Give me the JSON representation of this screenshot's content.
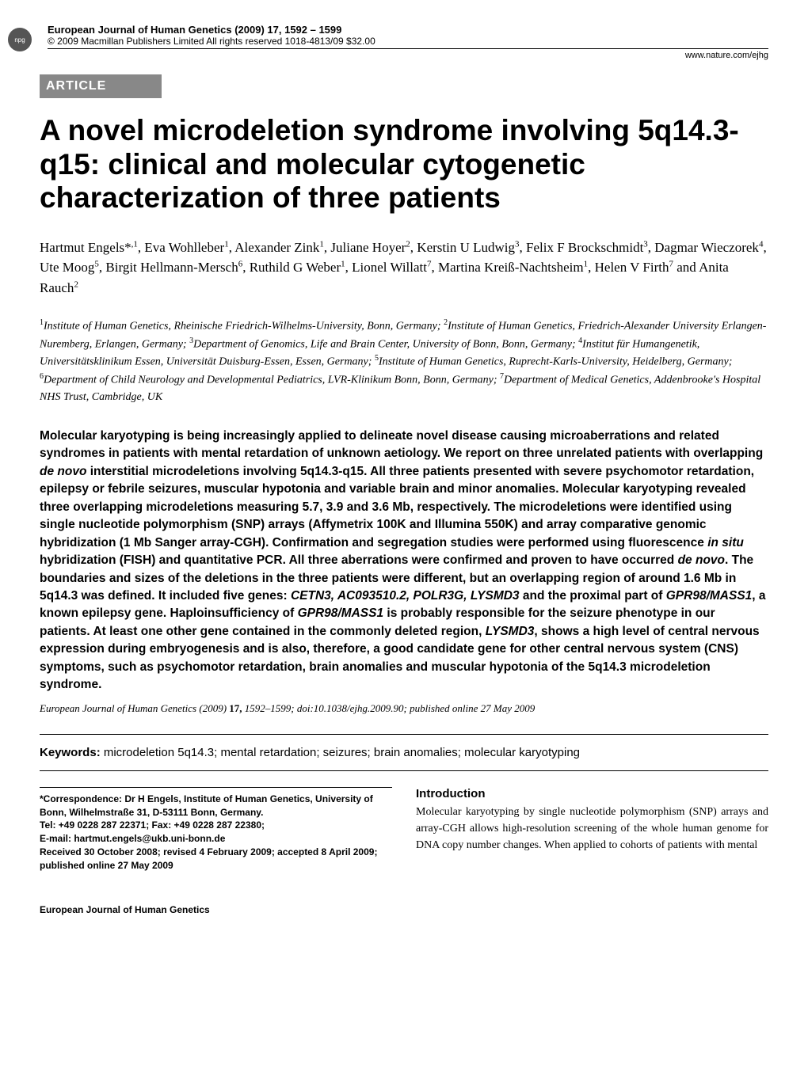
{
  "badge": {
    "npg_text": "npg"
  },
  "header": {
    "journal_line": "European Journal of Human Genetics (2009) 17, 1592 – 1599",
    "copyright_line": "© 2009 Macmillan Publishers Limited   All rights reserved 1018-4813/09 $32.00",
    "url": "www.nature.com/ejhg"
  },
  "article_label": "ARTICLE",
  "title": "A novel microdeletion syndrome involving 5q14.3-q15: clinical and molecular cytogenetic characterization of three patients",
  "authors": {
    "a1": "Hartmut Engels*",
    "a1_sup": ",1",
    "a2": ", Eva Wohlleber",
    "a2_sup": "1",
    "a3": ", Alexander Zink",
    "a3_sup": "1",
    "a4": ", Juliane Hoyer",
    "a4_sup": "2",
    "a5": ", Kerstin U Ludwig",
    "a5_sup": "3",
    "a6": ", Felix F Brockschmidt",
    "a6_sup": "3",
    "a7": ", Dagmar Wieczorek",
    "a7_sup": "4",
    "a8": ", Ute Moog",
    "a8_sup": "5",
    "a9": ", Birgit Hellmann-Mersch",
    "a9_sup": "6",
    "a10": ", Ruthild G Weber",
    "a10_sup": "1",
    "a11": ", Lionel Willatt",
    "a11_sup": "7",
    "a12": ", Martina Kreiß-Nachtsheim",
    "a12_sup": "1",
    "a13": ", Helen V Firth",
    "a13_sup": "7",
    "a14": " and Anita Rauch",
    "a14_sup": "2"
  },
  "affiliations": {
    "sup1": "1",
    "aff1": "Institute of Human Genetics, Rheinische Friedrich-Wilhelms-University, Bonn, Germany; ",
    "sup2": "2",
    "aff2": "Institute of Human Genetics, Friedrich-Alexander University Erlangen-Nuremberg, Erlangen, Germany; ",
    "sup3": "3",
    "aff3": "Department of Genomics, Life and Brain Center, University of Bonn, Bonn, Germany; ",
    "sup4": "4",
    "aff4": "Institut für Humangenetik, Universitätsklinikum Essen, Universität Duisburg-Essen, Essen, Germany; ",
    "sup5": "5",
    "aff5": "Institute of Human Genetics, Ruprecht-Karls-University, Heidelberg, Germany; ",
    "sup6": "6",
    "aff6": "Department of Child Neurology and Developmental Pediatrics, LVR-Klinikum Bonn, Bonn, Germany; ",
    "sup7": "7",
    "aff7": "Department of Medical Genetics, Addenbrooke's Hospital NHS Trust, Cambridge, UK"
  },
  "abstract": {
    "p1": "Molecular karyotyping is being increasingly applied to delineate novel disease causing microaberrations and related syndromes in patients with mental retardation of unknown aetiology. We report on three unrelated patients with overlapping ",
    "p1_it1": "de novo",
    "p2": " interstitial microdeletions involving 5q14.3-q15. All three patients presented with severe psychomotor retardation, epilepsy or febrile seizures, muscular hypotonia and variable brain and minor anomalies. Molecular karyotyping revealed three overlapping microdeletions measuring 5.7, 3.9 and 3.6 Mb, respectively. The microdeletions were identified using single nucleotide polymorphism (SNP) arrays (Affymetrix 100K and Illumina 550K) and array comparative genomic hybridization (1 Mb Sanger array-CGH). Confirmation and segregation studies were performed using fluorescence ",
    "p2_it1": "in situ",
    "p3": " hybridization (FISH) and quantitative PCR. All three aberrations were confirmed and proven to have occurred ",
    "p3_it1": "de novo",
    "p4": ". The boundaries and sizes of the deletions in the three patients were different, but an overlapping region of around 1.6 Mb in 5q14.3 was defined. It included five genes: ",
    "p4_it1": "CETN3, AC093510.2, POLR3G, LYSMD3",
    "p5": " and the proximal part of ",
    "p5_it1": "GPR98/MASS1",
    "p6": ", a known epilepsy gene. Haploinsufficiency of ",
    "p6_it1": "GPR98/MASS1",
    "p7": " is probably responsible for the seizure phenotype in our patients. At least one other gene contained in the commonly deleted region, ",
    "p7_it1": "LYSMD3",
    "p8": ", shows a high level of central nervous expression during embryogenesis and is also, therefore, a good candidate gene for other central nervous system (CNS) symptoms, such as psychomotor retardation, brain anomalies and muscular hypotonia of the 5q14.3 microdeletion syndrome."
  },
  "citation": {
    "journal": "European Journal of Human Genetics",
    "year_vol": " (2009) ",
    "vol": "17,",
    "pages": " 1592–1599; doi:10.1038/ejhg.2009.90; published online 27 May 2009"
  },
  "keywords": {
    "label": "Keywords:",
    "text": " microdeletion 5q14.3; mental retardation; seizures; brain anomalies; molecular karyotyping"
  },
  "correspondence": {
    "line1": "*Correspondence: Dr H Engels, Institute of Human Genetics, University of Bonn, Wilhelmstraße 31, D-53111 Bonn, Germany.",
    "line2": "Tel: +49 0228 287 22371; Fax: +49 0228 287 22380;",
    "line3": "E-mail: hartmut.engels@ukb.uni-bonn.de",
    "line4": "Received 30 October 2008; revised 4 February 2009; accepted 8 April 2009; published online 27 May 2009"
  },
  "intro": {
    "heading": "Introduction",
    "body": "Molecular karyotyping by single nucleotide polymorphism (SNP) arrays and array-CGH allows high-resolution screening of the whole human genome for DNA copy number changes. When applied to cohorts of patients with mental"
  },
  "footer": {
    "journal": "European Journal of Human Genetics"
  },
  "colors": {
    "badge_bg": "#888888",
    "badge_fg": "#ffffff",
    "text": "#000000",
    "bg": "#ffffff"
  },
  "typography": {
    "title_fontsize": 37,
    "authors_fontsize": 17,
    "affiliations_fontsize": 14,
    "abstract_fontsize": 15.5,
    "body_fontsize": 14
  }
}
